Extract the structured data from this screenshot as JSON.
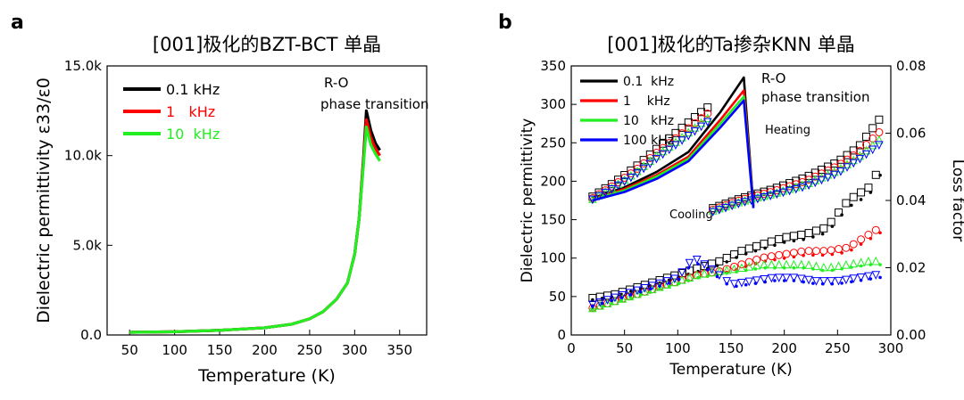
{
  "chart_data": [
    {
      "panel": "a",
      "type": "line",
      "title": "[001]极化的BZT-BCT 单晶",
      "xlabel": "Temperature (K)",
      "ylabel": "Dielectric permittivity ε33/ε0",
      "xlim": [
        25,
        380
      ],
      "ylim": [
        0,
        15000
      ],
      "xticks": [
        "50",
        "100",
        "150",
        "200",
        "250",
        "300",
        "350"
      ],
      "yticks": [
        "0.0",
        "5.0k",
        "10.0k",
        "15.0k"
      ],
      "legend_position": "top-left",
      "annotations": [
        "R-O",
        "phase transition"
      ],
      "series": [
        {
          "name": "0.1 kHz",
          "color": "#000000",
          "x": [
            50,
            100,
            150,
            200,
            230,
            250,
            265,
            280,
            292,
            300,
            305,
            310,
            313,
            318,
            323,
            328
          ],
          "y": [
            150,
            180,
            260,
            400,
            600,
            900,
            1300,
            2000,
            2900,
            4500,
            6500,
            10000,
            12500,
            11400,
            10700,
            10300
          ]
        },
        {
          "name": "1   kHz",
          "color": "#ff0000",
          "x": [
            50,
            100,
            150,
            200,
            230,
            250,
            265,
            280,
            292,
            300,
            305,
            310,
            313,
            318,
            323,
            328
          ],
          "y": [
            150,
            180,
            260,
            400,
            600,
            900,
            1300,
            2000,
            2900,
            4500,
            6500,
            9800,
            12000,
            11000,
            10400,
            10000
          ]
        },
        {
          "name": "10  kHz",
          "color": "#22ee22",
          "x": [
            50,
            100,
            150,
            200,
            230,
            250,
            265,
            280,
            292,
            300,
            305,
            310,
            313,
            318,
            323,
            328
          ],
          "y": [
            150,
            180,
            260,
            400,
            600,
            900,
            1300,
            2000,
            2900,
            4500,
            6500,
            9600,
            11600,
            10600,
            10100,
            9700
          ]
        }
      ]
    },
    {
      "panel": "b",
      "type": "line",
      "title": "[001]极化的Ta掺杂KNN 单晶",
      "xlabel": "Temperature (K)",
      "ylabel": "Dielectric permittivity",
      "y2label": "Loss factor",
      "xlim": [
        0,
        300
      ],
      "ylim": [
        0,
        350
      ],
      "y2lim": [
        0.0,
        0.08
      ],
      "xticks": [
        "0",
        "50",
        "100",
        "150",
        "200",
        "250",
        "300"
      ],
      "yticks": [
        "0",
        "50",
        "100",
        "150",
        "200",
        "250",
        "300",
        "350"
      ],
      "y2ticks": [
        "0.00",
        "0.02",
        "0.04",
        "0.06",
        "0.08"
      ],
      "legend_position": "top-left",
      "annotations": [
        "R-O",
        "phase transition",
        "Heating",
        "Cooling"
      ],
      "series": [
        {
          "name": "0.1  kHz",
          "color": "#000000",
          "heating_x": [
            20,
            50,
            80,
            110,
            140,
            162,
            171
          ],
          "heating_y": [
            178,
            192,
            212,
            238,
            290,
            335,
            168
          ],
          "cooling_x": [
            20,
            40,
            60,
            80,
            100,
            120,
            130
          ],
          "cooling_y": [
            180,
            198,
            218,
            242,
            265,
            288,
            298
          ],
          "cooling_high_x": [
            133,
            160,
            190,
            220,
            250,
            270,
            290
          ],
          "cooling_high_y": [
            165,
            178,
            190,
            205,
            225,
            245,
            282
          ],
          "loss_x": [
            20,
            40,
            60,
            80,
            100,
            120,
            140,
            160,
            180,
            200,
            220,
            240,
            260,
            280,
            290
          ],
          "loss_y": [
            0.011,
            0.012,
            0.014,
            0.016,
            0.018,
            0.02,
            0.022,
            0.025,
            0.027,
            0.029,
            0.03,
            0.032,
            0.04,
            0.044,
            0.05
          ]
        },
        {
          "name": "1    kHz",
          "color": "#ff0000",
          "heating_x": [
            20,
            50,
            80,
            110,
            140,
            162,
            171
          ],
          "heating_y": [
            177,
            190,
            208,
            232,
            280,
            318,
            167
          ],
          "cooling_x": [
            20,
            40,
            60,
            80,
            100,
            120,
            130
          ],
          "cooling_y": [
            178,
            195,
            214,
            237,
            258,
            280,
            290
          ],
          "cooling_high_x": [
            133,
            160,
            190,
            220,
            250,
            270,
            290
          ],
          "cooling_high_y": [
            163,
            176,
            187,
            200,
            220,
            238,
            265
          ],
          "loss_x": [
            20,
            40,
            60,
            80,
            100,
            120,
            140,
            160,
            180,
            200,
            220,
            240,
            260,
            280,
            290
          ],
          "loss_y": [
            0.008,
            0.01,
            0.012,
            0.014,
            0.016,
            0.018,
            0.019,
            0.021,
            0.023,
            0.024,
            0.025,
            0.025,
            0.026,
            0.03,
            0.032
          ]
        },
        {
          "name": "10   kHz",
          "color": "#22ee22",
          "heating_x": [
            20,
            50,
            80,
            110,
            140,
            162,
            171
          ],
          "heating_y": [
            176,
            188,
            206,
            229,
            275,
            310,
            166
          ],
          "cooling_x": [
            20,
            40,
            60,
            80,
            100,
            120,
            130
          ],
          "cooling_y": [
            177,
            193,
            211,
            233,
            253,
            274,
            284
          ],
          "cooling_high_x": [
            133,
            160,
            190,
            220,
            250,
            270,
            290
          ],
          "cooling_high_y": [
            162,
            174,
            184,
            196,
            214,
            232,
            255
          ],
          "loss_x": [
            20,
            40,
            60,
            80,
            100,
            120,
            140,
            160,
            180,
            200,
            220,
            240,
            260,
            280,
            290
          ],
          "loss_y": [
            0.008,
            0.01,
            0.012,
            0.014,
            0.016,
            0.018,
            0.019,
            0.02,
            0.021,
            0.021,
            0.021,
            0.02,
            0.021,
            0.022,
            0.022
          ]
        },
        {
          "name": "100 kHz",
          "color": "#0000ff",
          "heating_x": [
            20,
            50,
            80,
            110,
            140,
            162,
            171
          ],
          "heating_y": [
            175,
            186,
            203,
            226,
            270,
            305,
            165
          ],
          "cooling_x": [
            20,
            40,
            60,
            80,
            100,
            120,
            130
          ],
          "cooling_y": [
            176,
            191,
            208,
            229,
            249,
            269,
            279
          ],
          "cooling_high_x": [
            133,
            160,
            190,
            220,
            250,
            270,
            290
          ],
          "cooling_high_y": [
            160,
            172,
            182,
            193,
            210,
            228,
            248
          ],
          "loss_x": [
            20,
            40,
            60,
            80,
            100,
            115,
            130,
            150,
            170,
            190,
            210,
            230,
            250,
            270,
            290
          ],
          "loss_y": [
            0.009,
            0.011,
            0.013,
            0.015,
            0.017,
            0.023,
            0.02,
            0.015,
            0.016,
            0.017,
            0.017,
            0.016,
            0.016,
            0.017,
            0.018
          ]
        }
      ]
    }
  ]
}
